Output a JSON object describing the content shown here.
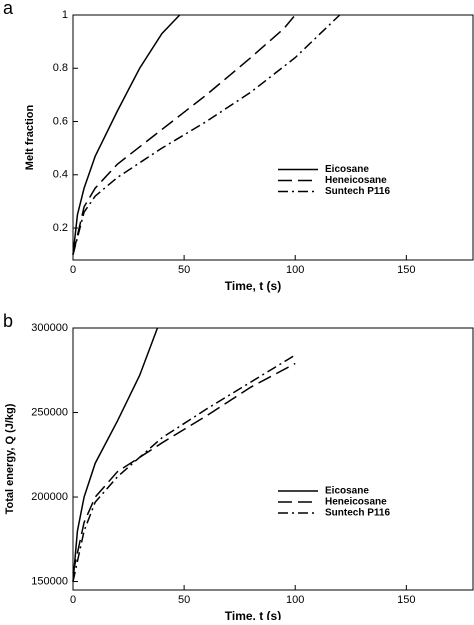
{
  "chart_data": [
    {
      "type": "line",
      "panel_label": "a",
      "xlabel": "Time, t (s)",
      "ylabel": "Melt fraction",
      "xlim": [
        0,
        180
      ],
      "ylim": [
        0.08,
        1
      ],
      "xticks": [
        0,
        50,
        100,
        150
      ],
      "yticks": [
        0.2,
        0.4,
        0.6,
        0.8,
        1
      ],
      "legend": "center right",
      "series": [
        {
          "name": "Eicosane",
          "color": "#000000",
          "dash": "solid",
          "x": [
            0,
            2,
            5,
            10,
            20,
            30,
            40,
            48
          ],
          "values": [
            0.1,
            0.25,
            0.35,
            0.47,
            0.64,
            0.8,
            0.93,
            1
          ]
        },
        {
          "name": "Heneicosane",
          "color": "#000000",
          "dash": "dashed",
          "x": [
            0,
            5,
            10,
            20,
            40,
            60,
            80,
            95,
            100
          ],
          "values": [
            0.1,
            0.28,
            0.35,
            0.44,
            0.57,
            0.7,
            0.84,
            0.95,
            1
          ]
        },
        {
          "name": "Suntech P116",
          "color": "#000000",
          "dash": "dashdot",
          "x": [
            0,
            5,
            10,
            20,
            40,
            60,
            80,
            100,
            120
          ],
          "values": [
            0.1,
            0.26,
            0.32,
            0.39,
            0.5,
            0.6,
            0.71,
            0.84,
            1
          ]
        }
      ]
    },
    {
      "type": "line",
      "panel_label": "b",
      "xlabel": "Time, t (s)",
      "ylabel": "Total energy, Q (J/kg)",
      "xlim": [
        0,
        180
      ],
      "ylim": [
        145000,
        300000
      ],
      "xticks": [
        0,
        50,
        100,
        150
      ],
      "yticks": [
        150000,
        200000,
        250000,
        300000
      ],
      "legend": "center right",
      "series": [
        {
          "name": "Eicosane",
          "color": "#000000",
          "dash": "solid",
          "x": [
            0,
            2,
            5,
            10,
            20,
            30,
            38
          ],
          "values": [
            150000,
            180000,
            200000,
            220000,
            245000,
            272000,
            300000
          ]
        },
        {
          "name": "Heneicosane",
          "color": "#000000",
          "dash": "dashed",
          "x": [
            0,
            5,
            10,
            20,
            40,
            60,
            80,
            100
          ],
          "values": [
            155000,
            185000,
            200000,
            215000,
            232000,
            248000,
            265000,
            279000
          ]
        },
        {
          "name": "Suntech P116",
          "color": "#000000",
          "dash": "dashdot",
          "x": [
            0,
            5,
            10,
            20,
            40,
            60,
            80,
            100
          ],
          "values": [
            150000,
            180000,
            197000,
            212000,
            235000,
            252000,
            268000,
            284000
          ]
        }
      ]
    }
  ]
}
